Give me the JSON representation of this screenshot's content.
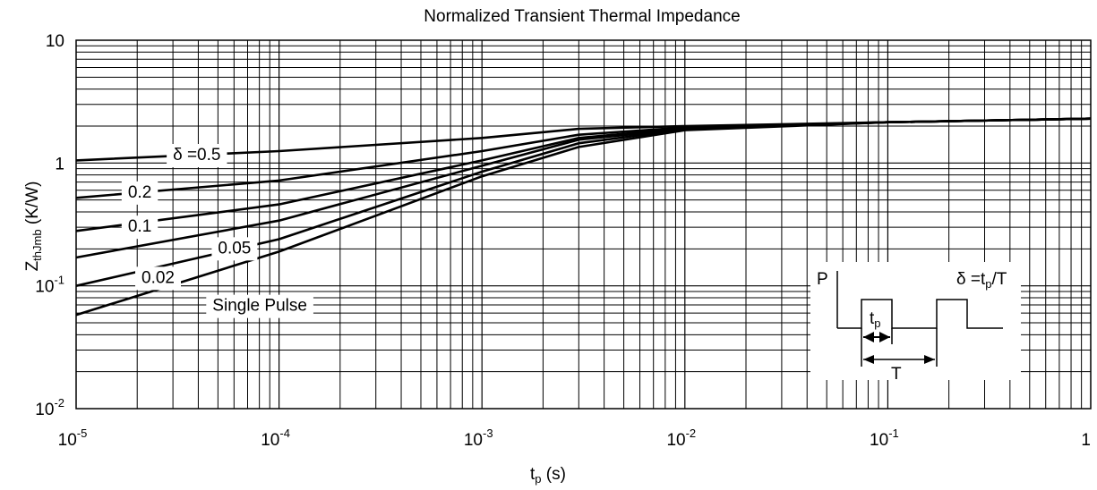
{
  "chart_data": {
    "type": "line",
    "title": "Normalized Transient Thermal Impedance",
    "xlabel": {
      "main": "t",
      "sub": "p",
      "unit": " (s)"
    },
    "ylabel": {
      "main": "Z",
      "sub": "thJmb",
      "unit": " (K/W)"
    },
    "x_scale": "log",
    "y_scale": "log",
    "xlim": [
      1e-05,
      1
    ],
    "ylim": [
      0.01,
      10
    ],
    "grid": true,
    "x_ticks": [
      {
        "value": 1e-05,
        "base": "10",
        "exp": "-5"
      },
      {
        "value": 0.0001,
        "base": "10",
        "exp": "-4"
      },
      {
        "value": 0.001,
        "base": "10",
        "exp": "-3"
      },
      {
        "value": 0.01,
        "base": "10",
        "exp": "-2"
      },
      {
        "value": 0.1,
        "base": "10",
        "exp": "-1"
      },
      {
        "value": 1,
        "base": "1",
        "exp": ""
      }
    ],
    "y_ticks": [
      {
        "value": 0.01,
        "base": "10",
        "exp": "-2"
      },
      {
        "value": 0.1,
        "base": "10",
        "exp": "-1"
      },
      {
        "value": 1,
        "base": "1",
        "exp": ""
      },
      {
        "value": 10,
        "base": "10",
        "exp": ""
      }
    ],
    "series": [
      {
        "name": "δ =0.5",
        "points": [
          [
            1e-05,
            1.05
          ],
          [
            0.0001,
            1.25
          ],
          [
            0.001,
            1.6
          ],
          [
            0.003,
            1.9
          ],
          [
            0.01,
            2.0
          ],
          [
            0.1,
            2.15
          ],
          [
            1,
            2.3
          ]
        ]
      },
      {
        "name": "0.2",
        "points": [
          [
            1e-05,
            0.52
          ],
          [
            0.0001,
            0.72
          ],
          [
            0.001,
            1.25
          ],
          [
            0.003,
            1.7
          ],
          [
            0.01,
            1.95
          ],
          [
            0.1,
            2.15
          ],
          [
            1,
            2.3
          ]
        ]
      },
      {
        "name": "0.1",
        "points": [
          [
            1e-05,
            0.28
          ],
          [
            0.0001,
            0.46
          ],
          [
            0.001,
            1.05
          ],
          [
            0.003,
            1.6
          ],
          [
            0.01,
            1.92
          ],
          [
            0.1,
            2.15
          ],
          [
            1,
            2.3
          ]
        ]
      },
      {
        "name": "0.05",
        "points": [
          [
            1e-05,
            0.17
          ],
          [
            0.0001,
            0.34
          ],
          [
            0.001,
            0.95
          ],
          [
            0.003,
            1.55
          ],
          [
            0.01,
            1.9
          ],
          [
            0.1,
            2.15
          ],
          [
            1,
            2.3
          ]
        ]
      },
      {
        "name": "0.02",
        "points": [
          [
            1e-05,
            0.1
          ],
          [
            0.0001,
            0.24
          ],
          [
            0.001,
            0.85
          ],
          [
            0.003,
            1.45
          ],
          [
            0.01,
            1.88
          ],
          [
            0.1,
            2.15
          ],
          [
            1,
            2.3
          ]
        ]
      },
      {
        "name": "Single Pulse",
        "points": [
          [
            1e-05,
            0.058
          ],
          [
            0.0001,
            0.19
          ],
          [
            0.001,
            0.78
          ],
          [
            0.003,
            1.35
          ],
          [
            0.01,
            1.85
          ],
          [
            0.1,
            2.15
          ],
          [
            1,
            2.3
          ]
        ]
      }
    ],
    "curve_labels": [
      {
        "series": 0,
        "text": "δ =0.5",
        "x": 3e-05,
        "y": 1.15
      },
      {
        "series": 1,
        "text": "0.2",
        "x": 1.8e-05,
        "y": 0.57
      },
      {
        "series": 2,
        "text": "0.1",
        "x": 1.8e-05,
        "y": 0.3
      },
      {
        "series": 3,
        "text": "0.05",
        "x": 5e-05,
        "y": 0.2
      },
      {
        "series": 4,
        "text": "0.02",
        "x": 2.1e-05,
        "y": 0.115
      },
      {
        "series": 5,
        "text": "Single Pulse",
        "x": 4.7e-05,
        "y": 0.068
      }
    ],
    "inset": {
      "power_label": "P",
      "duty_label": {
        "delta": "δ =t",
        "sub": "p",
        "tail": "/T"
      },
      "tp_label": {
        "main": "t",
        "sub": "p"
      },
      "period_label": "T"
    }
  }
}
